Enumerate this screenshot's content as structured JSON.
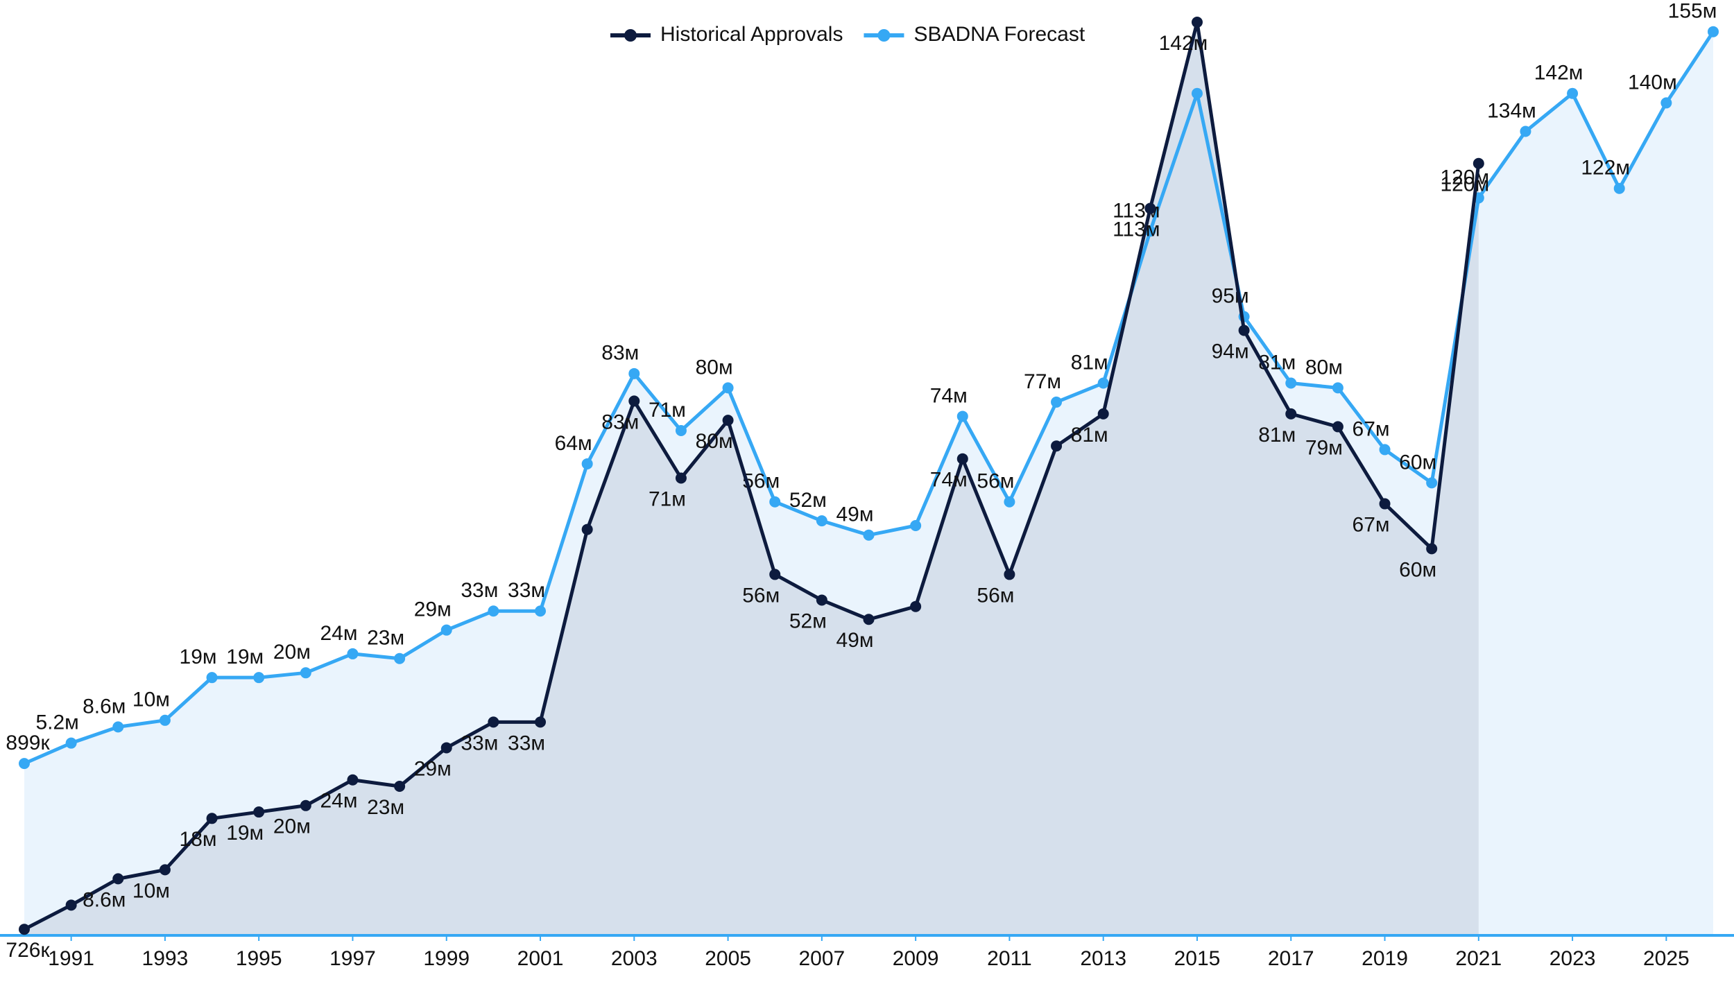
{
  "chart_data": {
    "type": "line",
    "x": [
      1990,
      1991,
      1992,
      1993,
      1994,
      1995,
      1996,
      1997,
      1998,
      1999,
      2000,
      2001,
      2002,
      2003,
      2004,
      2005,
      2006,
      2007,
      2008,
      2009,
      2010,
      2011,
      2012,
      2013,
      2014,
      2015,
      2016,
      2017,
      2018,
      2019,
      2020,
      2021,
      2022,
      2023,
      2024,
      2025,
      2026
    ],
    "xlim": [
      1990,
      2026
    ],
    "xticks": [
      1991,
      1993,
      1995,
      1997,
      1999,
      2001,
      2003,
      2005,
      2007,
      2009,
      2011,
      2013,
      2015,
      2017,
      2019,
      2021,
      2023,
      2025
    ],
    "ylim": [
      0,
      142
    ],
    "y2lim": [
      -35,
      157
    ],
    "legend": "top",
    "series": [
      {
        "name": "Historical Approvals",
        "color": "#0d1b3e",
        "fill": "#d6e0ec",
        "values": [
          0.726,
          4.5,
          8.6,
          10,
          18,
          19,
          20,
          24,
          23,
          29,
          33,
          33,
          63,
          83,
          71,
          80,
          56,
          52,
          49,
          51,
          74,
          56,
          76,
          81,
          113,
          142,
          94,
          81,
          79,
          67,
          60,
          120,
          null,
          null,
          null,
          null,
          null
        ],
        "value_labels": [
          "726к",
          null,
          "8.6м",
          "10м",
          "18м",
          "19м",
          "20м",
          "24м",
          "23м",
          "29м",
          "33м",
          "33м",
          null,
          "83м",
          "71м",
          "80м",
          "56м",
          "52м",
          "49м",
          null,
          "74м",
          "56м",
          null,
          "81м",
          "113м",
          "142м",
          "94м",
          "81м",
          "79м",
          "67м",
          "60м",
          "120м",
          null,
          null,
          null,
          null,
          null
        ]
      },
      {
        "name": "SBADNA Forecast",
        "color": "#36a8f4",
        "fill": "#eaf4fd",
        "axis": "y2",
        "values": [
          0.899,
          5.2,
          8.6,
          10,
          19,
          19,
          20,
          24,
          23,
          29,
          33,
          33,
          64,
          83,
          71,
          80,
          56,
          52,
          49,
          51,
          74,
          56,
          77,
          81,
          113,
          142,
          95,
          81,
          80,
          67,
          60,
          120,
          134,
          142,
          122,
          140,
          155
        ],
        "value_labels": [
          "899к",
          "5.2м",
          "8.6м",
          "10м",
          "19м",
          "19м",
          "20м",
          "24м",
          "23м",
          "29м",
          "33м",
          "33м",
          "64м",
          "83м",
          "71м",
          "80м",
          "56м",
          "52м",
          "49м",
          null,
          "74м",
          "56м",
          "77м",
          "81м",
          "113м",
          null,
          "95м",
          "81м",
          "80м",
          "67м",
          "60м",
          "120м",
          "134м",
          "142м",
          "122м",
          "140м",
          "155м"
        ]
      }
    ]
  }
}
